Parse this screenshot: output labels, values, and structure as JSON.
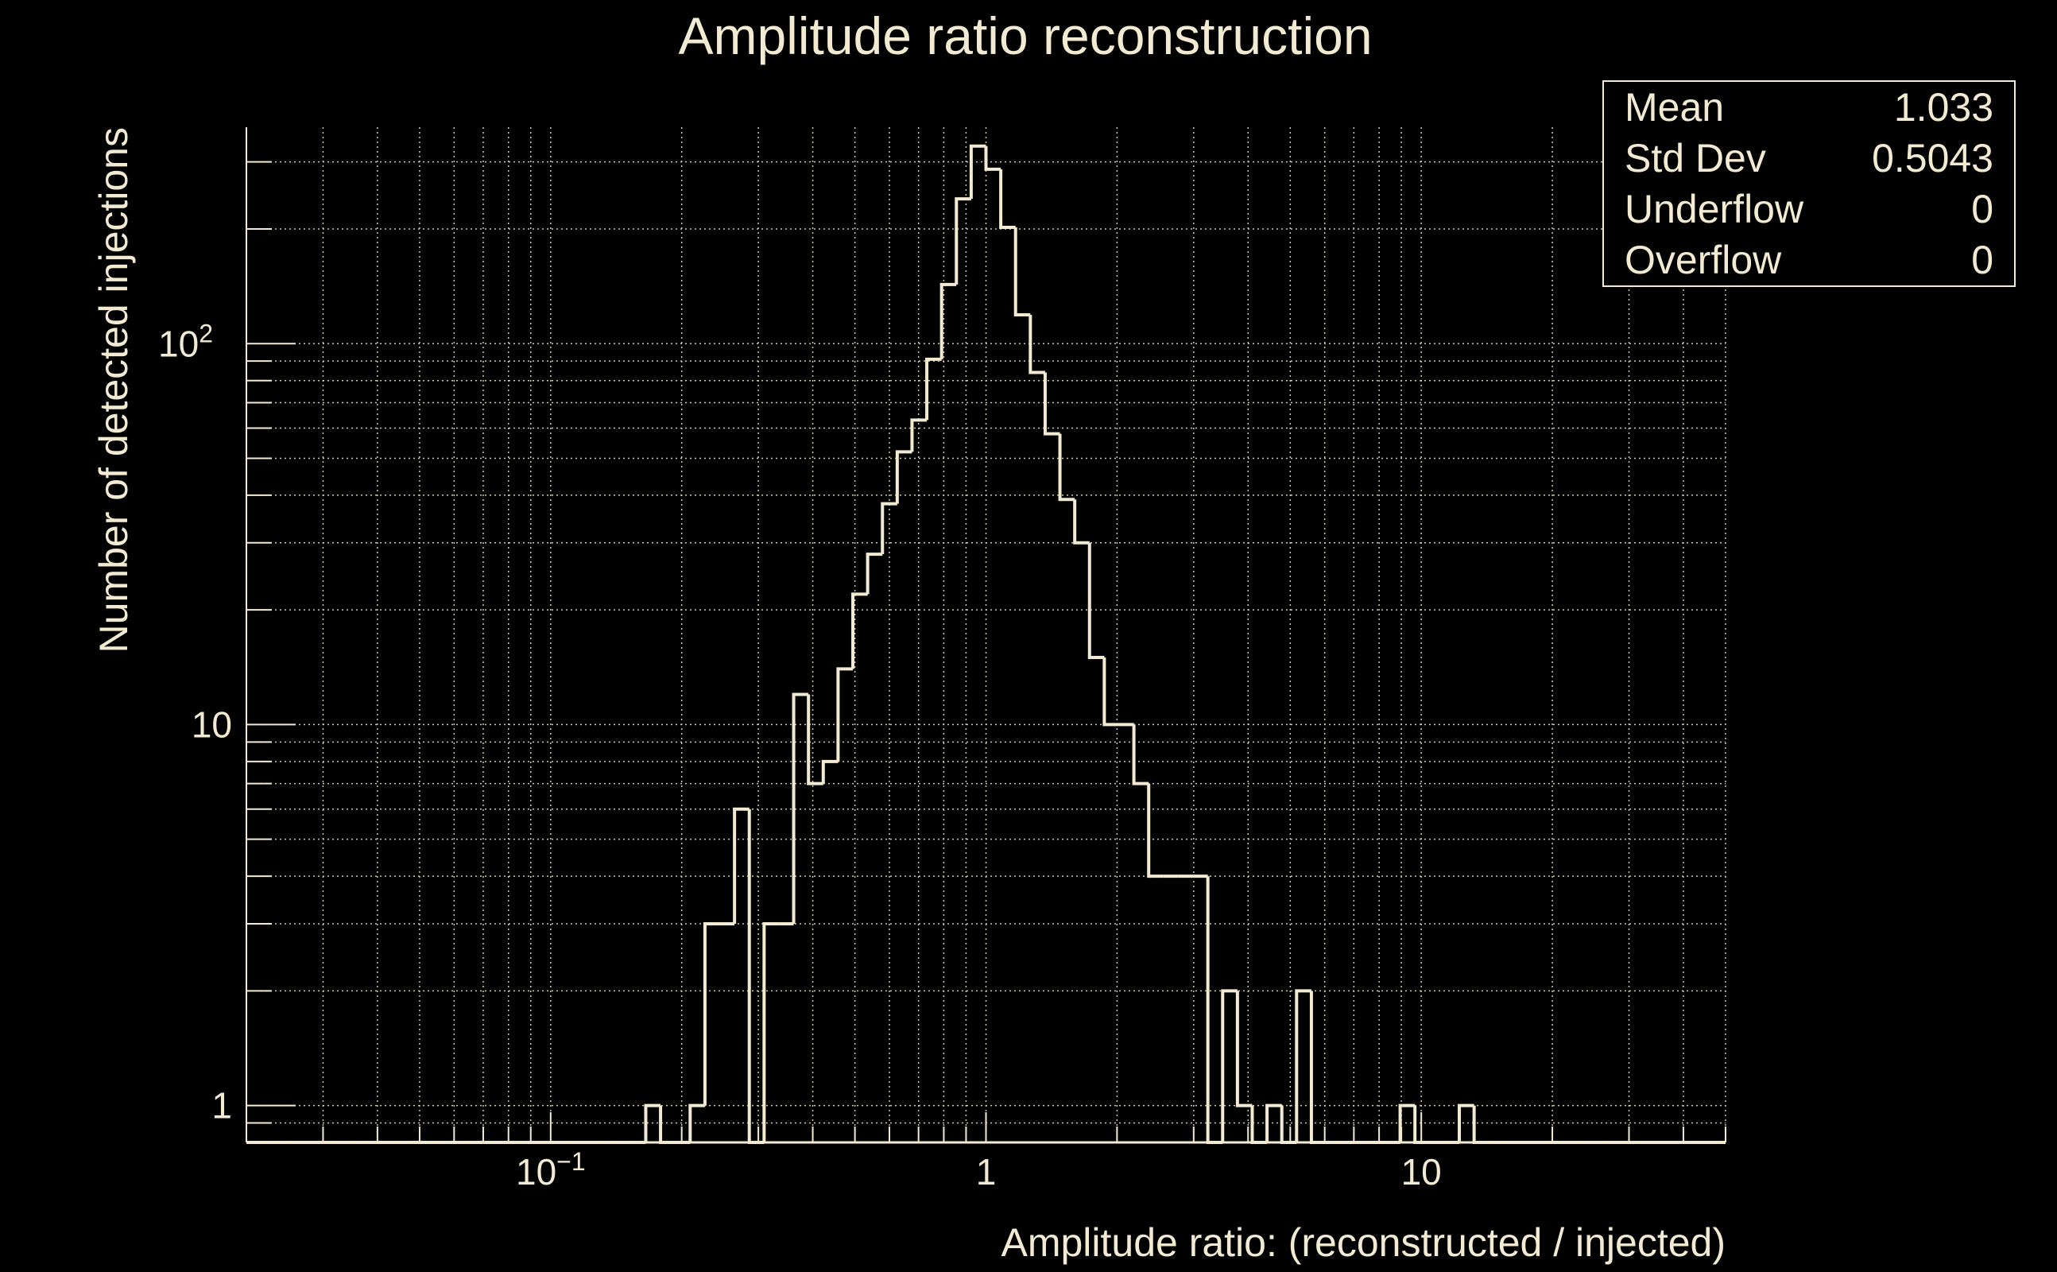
{
  "colors": {
    "background": "#000000",
    "foreground": "#f3ead2",
    "grid": "#cfc8b0"
  },
  "chart_data": {
    "type": "histogram",
    "title": "Amplitude ratio reconstruction",
    "xlabel": "Amplitude ratio: (reconstructed / injected)",
    "ylabel": "Number of detected injections",
    "xscale": "log",
    "yscale": "log",
    "xlim": [
      0.02,
      50
    ],
    "ylim": [
      0.8,
      370
    ],
    "grid": true,
    "n_bins": 100,
    "x_tick_labels": [
      {
        "value": 0.1,
        "base": "10",
        "exp": "−1"
      },
      {
        "value": 1,
        "base": "1",
        "exp": ""
      },
      {
        "value": 10,
        "base": "10",
        "exp": ""
      }
    ],
    "y_tick_labels": [
      {
        "value": 1,
        "base": "1",
        "exp": ""
      },
      {
        "value": 10,
        "base": "10",
        "exp": ""
      },
      {
        "value": 100,
        "base": "10",
        "exp": "2"
      }
    ],
    "bins": {
      "27": 1,
      "30": 1,
      "31": 3,
      "32": 3,
      "33": 6,
      "35": 3,
      "36": 3,
      "37": 12,
      "38": 7,
      "39": 8,
      "40": 14,
      "41": 22,
      "42": 28,
      "43": 38,
      "44": 52,
      "45": 63,
      "46": 91,
      "47": 143,
      "48": 240,
      "49": 330,
      "50": 287,
      "51": 202,
      "52": 119,
      "53": 84,
      "54": 58,
      "55": 39,
      "56": 30,
      "57": 15,
      "58": 10,
      "59": 10,
      "60": 7,
      "61": 4,
      "62": 4,
      "63": 4,
      "64": 4,
      "66": 2,
      "67": 1,
      "69": 1,
      "71": 2,
      "78": 1,
      "82": 1
    },
    "stats": [
      {
        "label": "Mean",
        "value": "1.033"
      },
      {
        "label": "Std Dev",
        "value": "0.5043"
      },
      {
        "label": "Underflow",
        "value": "0"
      },
      {
        "label": "Overflow",
        "value": "0"
      }
    ]
  }
}
